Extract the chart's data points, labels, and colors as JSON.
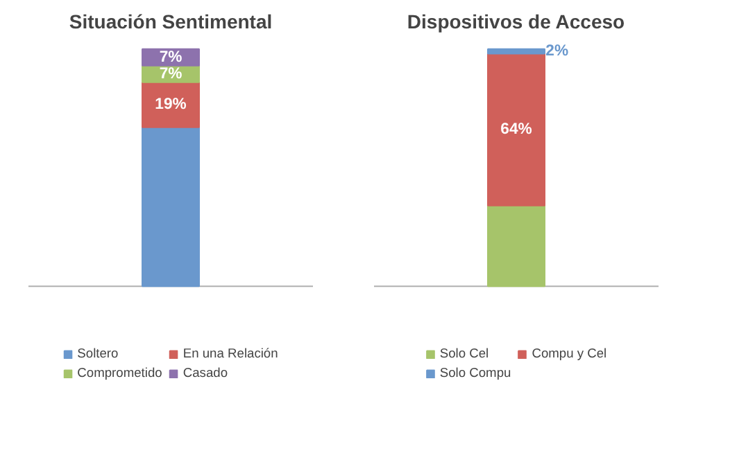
{
  "chart_data": [
    {
      "type": "bar",
      "title": "Situación Sentimental",
      "stacked": true,
      "categories": [
        null
      ],
      "legend": "bottom",
      "tick_labels": false,
      "grid": false,
      "series": [
        {
          "name": "Soltero",
          "color": "#6a98cd",
          "values": [
            67
          ],
          "value_labels": [
            null
          ]
        },
        {
          "name": "En una Relación",
          "color": "#d0605a",
          "values": [
            19
          ],
          "value_labels": [
            "19%"
          ]
        },
        {
          "name": "Comprometido",
          "color": "#a6c46a",
          "values": [
            7
          ],
          "value_labels": [
            "7%"
          ]
        },
        {
          "name": "Casado",
          "color": "#8d72ad",
          "values": [
            7
          ],
          "value_labels": [
            "7%"
          ]
        }
      ]
    },
    {
      "type": "bar",
      "title": "Dispositivos de Acceso",
      "stacked": true,
      "categories": [
        null
      ],
      "legend": "bottom",
      "tick_labels": false,
      "grid": false,
      "series": [
        {
          "name": "Solo Cel",
          "color": "#a6c46a",
          "values": [
            34
          ],
          "value_labels": [
            null
          ]
        },
        {
          "name": "Compu y Cel",
          "color": "#d0605a",
          "values": [
            64
          ],
          "value_labels": [
            "64%"
          ]
        },
        {
          "name": "Solo Compu",
          "color": "#6a98cd",
          "values": [
            2
          ],
          "value_labels": [
            "2%"
          ]
        }
      ]
    }
  ]
}
